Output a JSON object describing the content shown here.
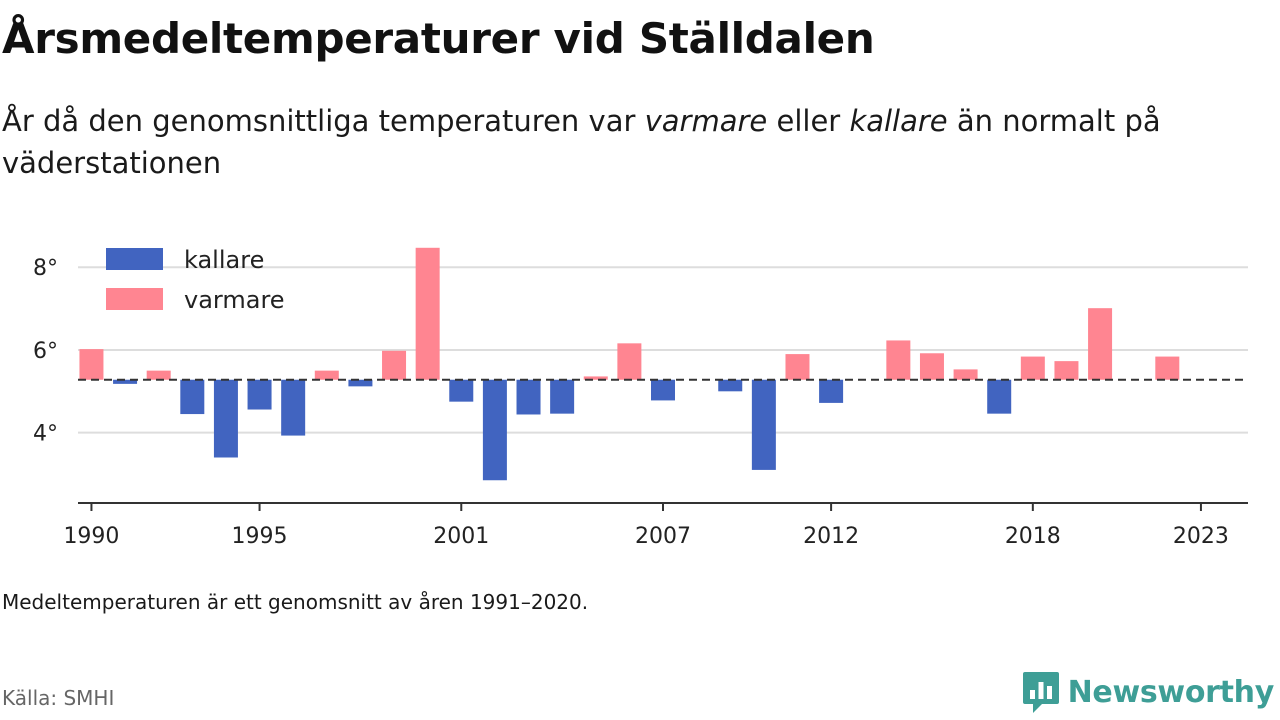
{
  "header": {
    "title": "Årsmedeltemperaturer vid Ställdalen",
    "subtitle_part1": "År då den genomsnittliga temperaturen var ",
    "subtitle_warm": "varmare",
    "subtitle_part2": " eller ",
    "subtitle_cold": "kallare",
    "subtitle_part3": " än normalt på väderstationen"
  },
  "footer": {
    "note": "Medeltemperaturen är ett genomsnitt av åren 1991–2020.",
    "source": "Källa: SMHI",
    "brand": "Newsworthy",
    "brand_icon": "newsworthy-logo-icon"
  },
  "colors": {
    "colder": "#4164c0",
    "warmer": "#ff8591",
    "brand": "#3e9e96",
    "reference_line": "#333333",
    "grid": "#dddddd",
    "axis": "#333333"
  },
  "chart_data": {
    "type": "bar",
    "baseline": 5.28,
    "baseline_style": "dashed",
    "ylim": [
      2.3,
      8.9
    ],
    "yticks": [
      4,
      6,
      8
    ],
    "ytick_labels": [
      "4°",
      "6°",
      "8°"
    ],
    "xlim": [
      1989.6,
      2024.4
    ],
    "xticks": [
      1990,
      1995,
      2001,
      2007,
      2012,
      2018,
      2023
    ],
    "xtick_labels": [
      "1990",
      "1995",
      "2001",
      "2007",
      "2012",
      "2018",
      "2023"
    ],
    "grid": true,
    "legend": {
      "position": "top-left",
      "entries": [
        {
          "label": "kallare",
          "key": "colder"
        },
        {
          "label": "varmare",
          "key": "warmer"
        }
      ]
    },
    "series": [
      {
        "name": "kallare",
        "x": [
          1991,
          1993,
          1994,
          1995,
          1996,
          1998,
          2001,
          2002,
          2003,
          2004,
          2007,
          2009,
          2010,
          2012,
          2017
        ],
        "values": [
          5.18,
          4.45,
          3.4,
          4.56,
          3.93,
          5.12,
          4.75,
          2.85,
          4.44,
          4.46,
          4.78,
          5.0,
          3.1,
          4.72,
          4.46
        ]
      },
      {
        "name": "varmare",
        "x": [
          1990,
          1992,
          1997,
          1999,
          2000,
          2005,
          2006,
          2011,
          2014,
          2015,
          2016,
          2018,
          2019,
          2020,
          2022
        ],
        "values": [
          6.02,
          5.5,
          5.5,
          5.98,
          8.47,
          5.36,
          6.16,
          5.9,
          6.23,
          5.92,
          5.53,
          5.84,
          5.73,
          7.01,
          5.84
        ]
      }
    ]
  }
}
